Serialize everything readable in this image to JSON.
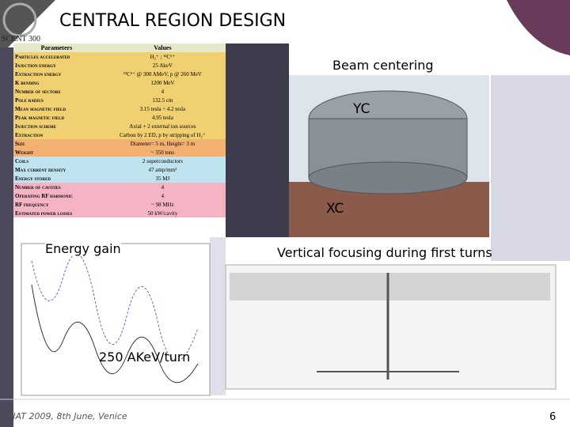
{
  "header": {
    "title": "CENTRAL REGION DESIGN",
    "logo": "SCENT 300"
  },
  "table": {
    "columns": [
      "Parameters",
      "Values"
    ],
    "rows": [
      [
        "Particles accelerated",
        "H₂⁺ ; ¹²C⁶⁺"
      ],
      [
        "Injection energy",
        "25 AkeV"
      ],
      [
        "Extraction energy",
        "¹²C⁶⁺ @ 300 AMeV, p @ 260 MeV"
      ],
      [
        "K bending",
        "1200 MeV"
      ],
      [
        "Number of sectors",
        "4"
      ],
      [
        "Pole radius",
        "132.5 cm"
      ],
      [
        "Mean magnetic field",
        "3.15 tesla ÷ 4.2 tesla"
      ],
      [
        "Peak magnetic field",
        "4.95 tesla"
      ],
      [
        "Injection scheme",
        "Axial + 2 external ion sources"
      ],
      [
        "Extraction",
        "Carbon by 2 ED, p by stripping of H₂⁺"
      ],
      [
        "Size",
        "Diameter= 5 m, Height= 3 m"
      ],
      [
        "Weight",
        "~ 350 tons"
      ],
      [
        "Coils",
        "2 superconductors"
      ],
      [
        "Max current density",
        "47 amp/mm²"
      ],
      [
        "Energy stored",
        "35 MJ"
      ],
      [
        "Number of cavities",
        "4"
      ],
      [
        "Operating RF harmonic",
        "4"
      ],
      [
        "RF frequency",
        "~ 98 MHz"
      ],
      [
        "Estimated power losses",
        "50 kW/cavity"
      ]
    ]
  },
  "labels": {
    "beam_centering": "Beam centering",
    "yc": "YC",
    "xc": "XC",
    "energy_gain": "Energy gain",
    "vertical_focusing": "Vertical focusing during first turns",
    "gain_value": "250 AKeV/turn"
  },
  "footer": {
    "event": "HIAT 2009, 8th June, Venice",
    "page": "6"
  }
}
